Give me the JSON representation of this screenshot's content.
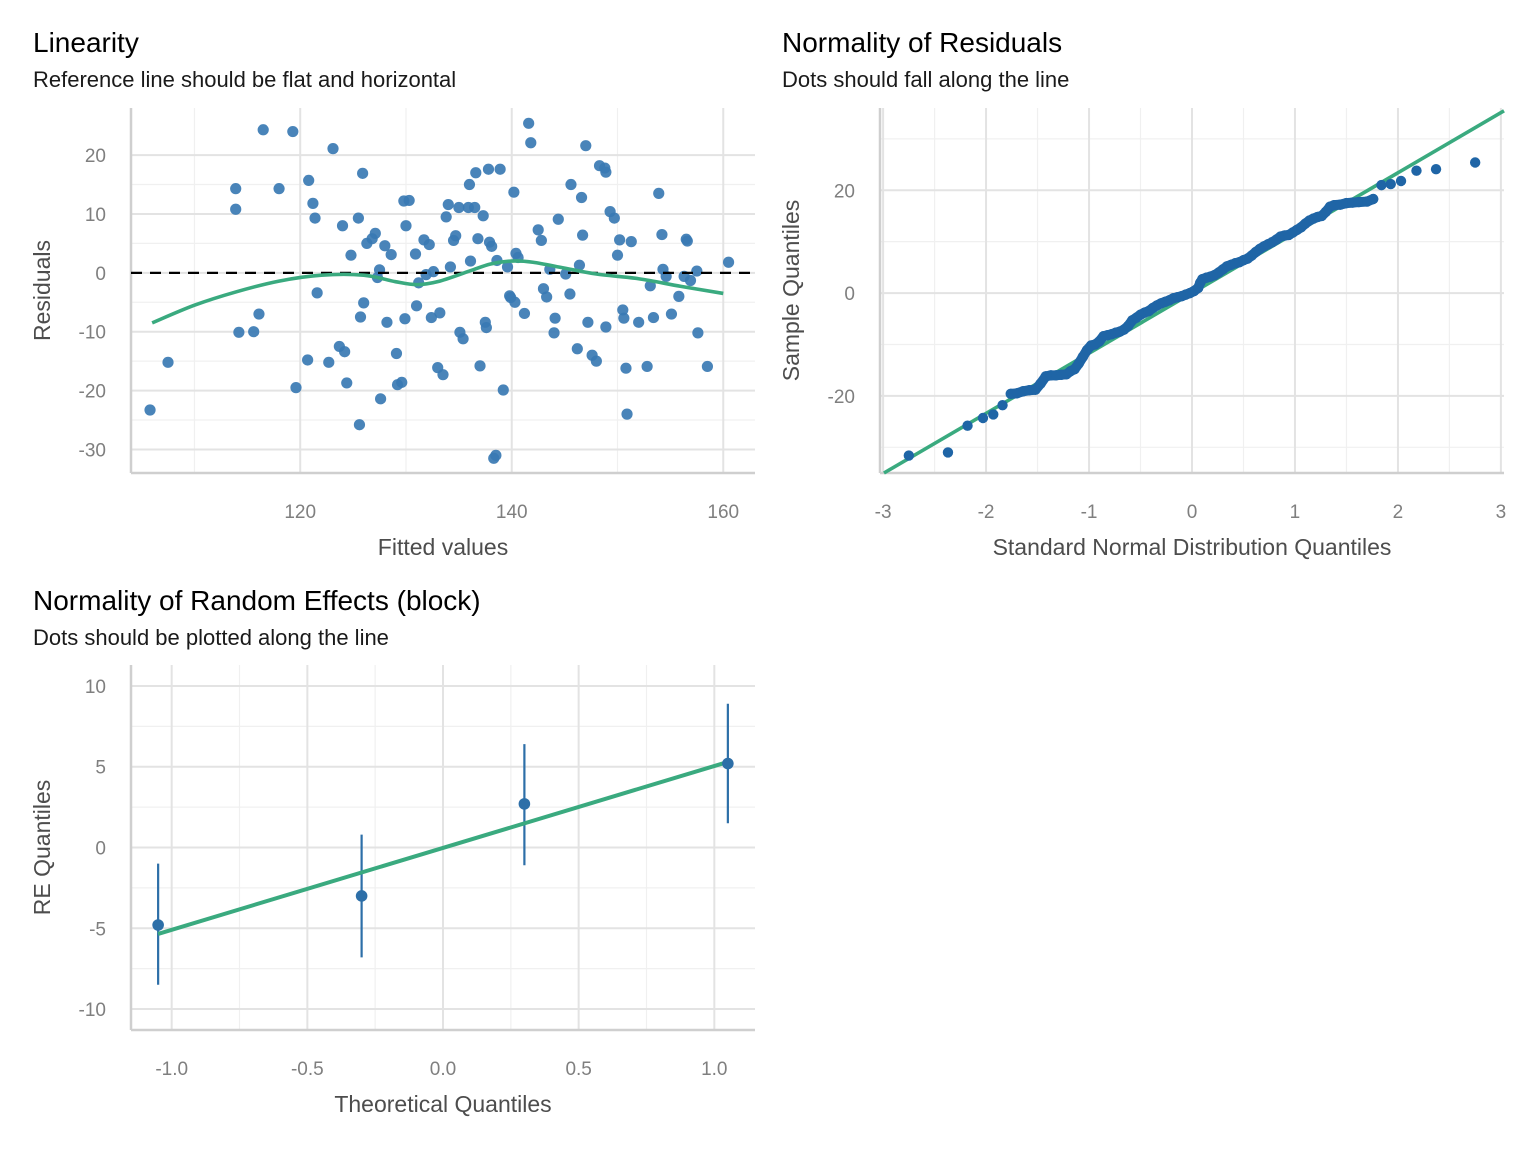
{
  "chart_data": [
    {
      "type": "scatter",
      "id": "linearity",
      "title": "Linearity",
      "subtitle": "Reference line should be flat and horizontal",
      "xlabel": "Fitted values",
      "ylabel": "Residuals",
      "xlim": [
        104,
        163
      ],
      "ylim": [
        -34,
        28
      ],
      "xticks": [
        120,
        140,
        160
      ],
      "xminor": [
        110,
        130,
        150
      ],
      "yticks": [
        -30,
        -20,
        -10,
        0,
        10,
        20
      ],
      "ytick_labels": [
        "-30",
        "-20",
        "-10",
        "0",
        "10",
        "20"
      ],
      "xtick_labels": [
        "120",
        "140",
        "160"
      ],
      "grid": true,
      "reference_line": {
        "y": 0,
        "style": "dashed"
      },
      "colors": {
        "points": "#3a7ab3",
        "smooth": "#3aaa7f",
        "reference": "#000000"
      },
      "smooth": [
        [
          106,
          -8.5
        ],
        [
          110,
          -5.5
        ],
        [
          114,
          -3.2
        ],
        [
          118,
          -1.4
        ],
        [
          122,
          -0.4
        ],
        [
          126,
          -0.4
        ],
        [
          129,
          -1.5
        ],
        [
          131,
          -2.0
        ],
        [
          133,
          -1.5
        ],
        [
          136,
          0.3
        ],
        [
          138,
          1.5
        ],
        [
          140,
          2.0
        ],
        [
          142,
          1.8
        ],
        [
          145,
          0.8
        ],
        [
          148,
          -0.2
        ],
        [
          152,
          -1.0
        ],
        [
          156,
          -2.3
        ],
        [
          160,
          -3.5
        ]
      ],
      "points": [
        [
          105.8,
          -23.3
        ],
        [
          107.5,
          -15.2
        ],
        [
          113.9,
          14.3
        ],
        [
          113.9,
          10.8
        ],
        [
          114.2,
          -10.1
        ],
        [
          115.6,
          -10.0
        ],
        [
          116.1,
          -7.0
        ],
        [
          116.5,
          24.3
        ],
        [
          118.0,
          14.3
        ],
        [
          119.3,
          24.0
        ],
        [
          119.6,
          -19.5
        ],
        [
          120.8,
          15.7
        ],
        [
          121.2,
          11.8
        ],
        [
          121.4,
          9.3
        ],
        [
          120.7,
          -14.8
        ],
        [
          121.6,
          -3.4
        ],
        [
          122.7,
          -15.2
        ],
        [
          123.1,
          21.1
        ],
        [
          123.7,
          -12.5
        ],
        [
          124.2,
          -13.4
        ],
        [
          124.4,
          -18.7
        ],
        [
          124.0,
          8.0
        ],
        [
          124.8,
          3.0
        ],
        [
          125.5,
          9.3
        ],
        [
          125.9,
          16.9
        ],
        [
          126.0,
          -5.1
        ],
        [
          125.7,
          -7.5
        ],
        [
          125.6,
          -25.8
        ],
        [
          126.3,
          5.0
        ],
        [
          126.8,
          5.8
        ],
        [
          127.1,
          6.7
        ],
        [
          127.5,
          0.5
        ],
        [
          127.3,
          -0.8
        ],
        [
          127.6,
          -21.4
        ],
        [
          128.0,
          4.6
        ],
        [
          128.6,
          3.1
        ],
        [
          128.2,
          -8.4
        ],
        [
          129.1,
          -13.7
        ],
        [
          129.2,
          -19.0
        ],
        [
          129.6,
          -18.6
        ],
        [
          129.8,
          12.2
        ],
        [
          130.0,
          8.0
        ],
        [
          129.9,
          -7.8
        ],
        [
          130.3,
          12.3
        ],
        [
          130.9,
          3.2
        ],
        [
          131.2,
          -1.7
        ],
        [
          131.0,
          -5.6
        ],
        [
          131.7,
          5.6
        ],
        [
          131.9,
          -0.3
        ],
        [
          132.2,
          4.8
        ],
        [
          132.6,
          0.2
        ],
        [
          132.4,
          -7.6
        ],
        [
          133.0,
          -16.1
        ],
        [
          133.2,
          -6.8
        ],
        [
          133.5,
          -17.3
        ],
        [
          133.8,
          9.5
        ],
        [
          134.0,
          11.6
        ],
        [
          134.2,
          1.0
        ],
        [
          134.5,
          5.5
        ],
        [
          134.7,
          6.3
        ],
        [
          135.0,
          11.1
        ],
        [
          135.1,
          -10.1
        ],
        [
          135.4,
          -11.2
        ],
        [
          135.9,
          11.1
        ],
        [
          136.0,
          15.0
        ],
        [
          136.1,
          2.0
        ],
        [
          136.6,
          17.0
        ],
        [
          136.5,
          11.1
        ],
        [
          136.8,
          5.8
        ],
        [
          137.0,
          -15.8
        ],
        [
          137.3,
          9.7
        ],
        [
          137.5,
          -8.4
        ],
        [
          137.8,
          17.6
        ],
        [
          137.6,
          -9.3
        ],
        [
          137.9,
          5.2
        ],
        [
          138.1,
          4.5
        ],
        [
          138.6,
          2.1
        ],
        [
          138.9,
          17.6
        ],
        [
          138.3,
          -31.5
        ],
        [
          138.5,
          -31.0
        ],
        [
          139.2,
          -19.9
        ],
        [
          139.6,
          1.0
        ],
        [
          139.8,
          -3.9
        ],
        [
          139.9,
          -4.2
        ],
        [
          140.3,
          -5.0
        ],
        [
          140.2,
          13.7
        ],
        [
          140.4,
          3.3
        ],
        [
          140.6,
          2.6
        ],
        [
          141.2,
          -6.9
        ],
        [
          141.6,
          25.4
        ],
        [
          141.8,
          22.1
        ],
        [
          142.5,
          7.3
        ],
        [
          142.8,
          5.5
        ],
        [
          143.0,
          -2.7
        ],
        [
          143.3,
          -4.1
        ],
        [
          143.6,
          0.6
        ],
        [
          144.0,
          -10.2
        ],
        [
          144.1,
          -7.7
        ],
        [
          144.4,
          9.1
        ],
        [
          145.1,
          -0.2
        ],
        [
          145.5,
          -3.6
        ],
        [
          145.6,
          15.0
        ],
        [
          146.6,
          12.8
        ],
        [
          146.4,
          1.3
        ],
        [
          146.2,
          -12.9
        ],
        [
          146.7,
          6.4
        ],
        [
          147.0,
          21.6
        ],
        [
          147.2,
          -8.4
        ],
        [
          147.6,
          -14.0
        ],
        [
          148.0,
          -15.0
        ],
        [
          148.3,
          18.2
        ],
        [
          148.8,
          17.8
        ],
        [
          148.9,
          17.1
        ],
        [
          148.9,
          -9.2
        ],
        [
          149.3,
          10.4
        ],
        [
          149.7,
          9.3
        ],
        [
          150.0,
          3.0
        ],
        [
          150.2,
          5.6
        ],
        [
          150.5,
          -6.3
        ],
        [
          150.6,
          -7.7
        ],
        [
          150.8,
          -16.2
        ],
        [
          150.9,
          -24.0
        ],
        [
          151.3,
          5.3
        ],
        [
          152.0,
          -8.4
        ],
        [
          152.8,
          -15.9
        ],
        [
          153.1,
          -2.2
        ],
        [
          153.4,
          -7.6
        ],
        [
          153.9,
          13.5
        ],
        [
          154.2,
          6.5
        ],
        [
          154.3,
          0.6
        ],
        [
          154.6,
          -0.6
        ],
        [
          155.8,
          -4.0
        ],
        [
          156.3,
          -0.6
        ],
        [
          156.5,
          5.7
        ],
        [
          156.6,
          5.4
        ],
        [
          156.9,
          -1.3
        ],
        [
          157.5,
          0.3
        ],
        [
          158.5,
          -15.9
        ],
        [
          160.5,
          1.8
        ],
        [
          155.1,
          -7.0
        ],
        [
          157.6,
          -10.2
        ]
      ]
    },
    {
      "type": "scatter",
      "id": "qq-residuals",
      "title": "Normality of Residuals",
      "subtitle": "Dots should fall along the line",
      "xlabel": "Standard Normal Distribution Quantiles",
      "ylabel": "Sample Quantiles",
      "xlim": [
        -3.03,
        3.03
      ],
      "ylim": [
        -35,
        36
      ],
      "xticks": [
        -3,
        -2,
        -1,
        0,
        1,
        2,
        3
      ],
      "xtick_labels": [
        "-3",
        "-2",
        "-1",
        "0",
        "1",
        "2",
        "3"
      ],
      "yticks": [
        -20,
        0,
        20
      ],
      "ytick_labels": [
        "-20",
        "0",
        "20"
      ],
      "yminor": [
        -30,
        -10,
        10,
        30
      ],
      "grid": true,
      "colors": {
        "points": "#1f65a6",
        "line": "#3aaa7f"
      },
      "reference_line": {
        "intercept": 0.0,
        "slope": 11.7
      },
      "points": [
        [
          -2.75,
          -31.6
        ],
        [
          -2.37,
          -31.0
        ],
        [
          -2.18,
          -25.8
        ],
        [
          -2.03,
          -24.3
        ],
        [
          -1.93,
          -23.6
        ],
        [
          -1.84,
          -21.8
        ],
        [
          -1.76,
          -19.6
        ],
        [
          -1.7,
          -19.5
        ],
        [
          -1.64,
          -19.1
        ],
        [
          -1.58,
          -18.9
        ],
        [
          -1.52,
          -18.8
        ],
        [
          -1.47,
          -17.6
        ],
        [
          -1.42,
          -16.2
        ],
        [
          -1.37,
          -16.0
        ],
        [
          -1.32,
          -16.0
        ],
        [
          -1.27,
          -15.9
        ],
        [
          -1.22,
          -15.8
        ],
        [
          -1.18,
          -15.2
        ],
        [
          -1.14,
          -14.8
        ],
        [
          -1.1,
          -13.7
        ],
        [
          -1.06,
          -12.4
        ],
        [
          -1.02,
          -11.1
        ],
        [
          -0.98,
          -10.2
        ],
        [
          -0.94,
          -10.0
        ],
        [
          -0.9,
          -9.4
        ],
        [
          -0.86,
          -8.4
        ],
        [
          -0.82,
          -8.2
        ],
        [
          -0.78,
          -8.0
        ],
        [
          -0.74,
          -7.7
        ],
        [
          -0.7,
          -7.5
        ],
        [
          -0.66,
          -7.1
        ],
        [
          -0.62,
          -6.4
        ],
        [
          -0.58,
          -5.3
        ],
        [
          -0.54,
          -4.8
        ],
        [
          -0.5,
          -4.2
        ],
        [
          -0.46,
          -3.8
        ],
        [
          -0.42,
          -3.5
        ],
        [
          -0.38,
          -2.9
        ],
        [
          -0.34,
          -2.4
        ],
        [
          -0.3,
          -2.0
        ],
        [
          -0.26,
          -1.7
        ],
        [
          -0.22,
          -1.4
        ],
        [
          -0.18,
          -1.0
        ],
        [
          -0.14,
          -0.8
        ],
        [
          -0.1,
          -0.6
        ],
        [
          -0.06,
          -0.3
        ],
        [
          -0.02,
          0.0
        ],
        [
          0.02,
          0.4
        ],
        [
          0.06,
          1.0
        ],
        [
          0.08,
          2.0
        ],
        [
          0.1,
          2.7
        ],
        [
          0.14,
          3.0
        ],
        [
          0.18,
          3.2
        ],
        [
          0.22,
          3.5
        ],
        [
          0.26,
          4.0
        ],
        [
          0.3,
          4.6
        ],
        [
          0.34,
          5.2
        ],
        [
          0.38,
          5.5
        ],
        [
          0.42,
          5.8
        ],
        [
          0.46,
          6.0
        ],
        [
          0.5,
          6.4
        ],
        [
          0.54,
          6.7
        ],
        [
          0.58,
          7.3
        ],
        [
          0.62,
          8.0
        ],
        [
          0.66,
          8.6
        ],
        [
          0.7,
          9.1
        ],
        [
          0.74,
          9.5
        ],
        [
          0.78,
          9.9
        ],
        [
          0.82,
          10.4
        ],
        [
          0.86,
          11.0
        ],
        [
          0.9,
          11.2
        ],
        [
          0.94,
          11.3
        ],
        [
          0.98,
          11.8
        ],
        [
          1.02,
          12.3
        ],
        [
          1.06,
          12.8
        ],
        [
          1.1,
          13.5
        ],
        [
          1.14,
          14.1
        ],
        [
          1.18,
          14.5
        ],
        [
          1.22,
          14.8
        ],
        [
          1.26,
          15.0
        ],
        [
          1.3,
          15.8
        ],
        [
          1.34,
          16.8
        ],
        [
          1.38,
          17.1
        ],
        [
          1.44,
          17.2
        ],
        [
          1.5,
          17.5
        ],
        [
          1.56,
          17.6
        ],
        [
          1.62,
          17.7
        ],
        [
          1.7,
          17.8
        ],
        [
          1.76,
          18.3
        ],
        [
          1.84,
          21.0
        ],
        [
          1.93,
          21.2
        ],
        [
          2.03,
          21.8
        ],
        [
          2.18,
          23.8
        ],
        [
          2.37,
          24.1
        ],
        [
          2.75,
          25.4
        ]
      ]
    },
    {
      "type": "scatter",
      "id": "qq-random-effects",
      "title": "Normality of Random Effects (block)",
      "subtitle": "Dots should be plotted along the line",
      "xlabel": "Theoretical Quantiles",
      "ylabel": "RE Quantiles",
      "xlim": [
        -1.15,
        1.15
      ],
      "ylim": [
        -11.3,
        11.3
      ],
      "xticks": [
        -1.0,
        -0.5,
        0.0,
        0.5,
        1.0
      ],
      "xtick_labels": [
        "-1.0",
        "-0.5",
        "0.0",
        "0.5",
        "1.0"
      ],
      "xminor": [
        -0.75,
        -0.25,
        0.25,
        0.75
      ],
      "yticks": [
        -10,
        -5,
        0,
        5,
        10
      ],
      "ytick_labels": [
        "-10",
        "-5",
        "0",
        "5",
        "10"
      ],
      "yminor": [
        -7.5,
        -2.5,
        2.5,
        7.5
      ],
      "grid": true,
      "colors": {
        "points": "#2d6fa8",
        "line": "#3aaa7f"
      },
      "reference_line": {
        "x": [
          -1.05,
          1.05
        ],
        "y": [
          -5.35,
          5.3
        ]
      },
      "points": [
        {
          "x": -1.05,
          "y": -4.8,
          "low": -8.5,
          "high": -1.0
        },
        {
          "x": -0.3,
          "y": -3.0,
          "low": -6.8,
          "high": 0.8
        },
        {
          "x": 0.3,
          "y": 2.7,
          "low": -1.1,
          "high": 6.4
        },
        {
          "x": 1.05,
          "y": 5.2,
          "low": 1.5,
          "high": 8.9
        }
      ]
    }
  ]
}
